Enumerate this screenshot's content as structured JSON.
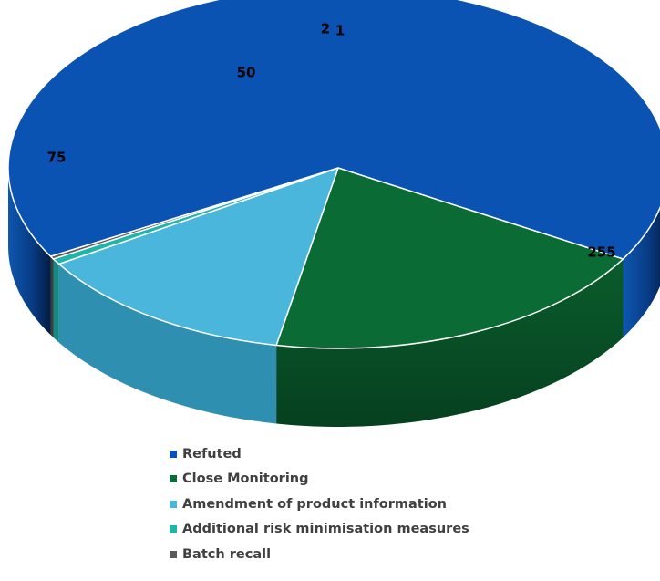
{
  "chart_data": {
    "type": "pie",
    "categories": [
      "Refuted",
      "Close Monitoring",
      "Amendment of product information",
      "Additional risk minimisation measures",
      "Batch recall"
    ],
    "values": [
      255,
      75,
      50,
      2,
      1
    ],
    "colors": [
      "#0a53b3",
      "#0b6b34",
      "#4bb6dc",
      "#1fb5a8",
      "#595959"
    ],
    "data_labels": [
      "255",
      "75",
      "50",
      "2",
      "1"
    ],
    "legend_position": "bottom",
    "style": "3d"
  }
}
